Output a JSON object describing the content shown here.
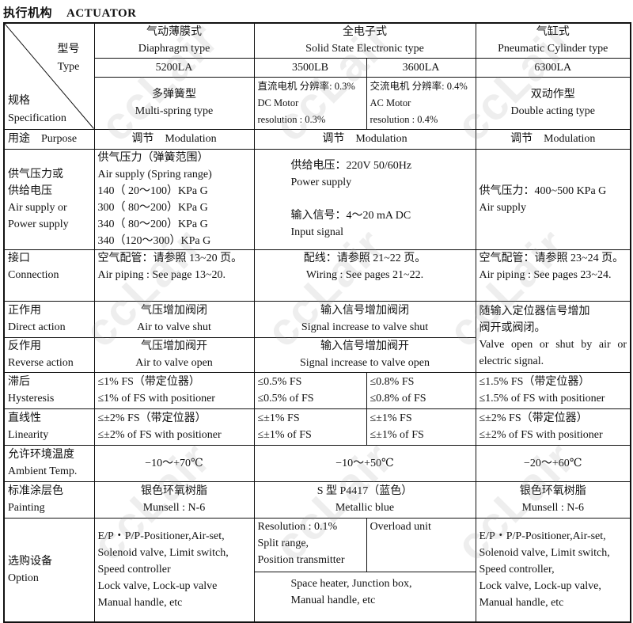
{
  "title": {
    "zh": "执行机构",
    "en": "ACTUATOR"
  },
  "watermark": "ccLair",
  "header": {
    "corner_type": "型号\nType",
    "corner_spec": "规格\nSpecification",
    "groups": [
      "气动薄膜式\nDiaphragm type",
      "全电子式\nSolid State Electronic type",
      "气缸式\nPneumatic Cylinder type"
    ],
    "models": [
      "5200LA",
      "3500LB",
      "3600LA",
      "6300LA"
    ],
    "specs": [
      "多弹簧型\nMulti-spring type",
      "直流电机 分辨率: 0.3%\nDC Motor\nresolution : 0.3%",
      "交流电机 分辨率: 0.4%\nAC Motor\nresolution : 0.4%",
      "双动作型\nDouble acting type"
    ]
  },
  "rows": {
    "purpose": {
      "label": "用途　Purpose",
      "values": [
        "调节　Modulation",
        "调节　Modulation",
        "调节　Modulation"
      ]
    },
    "supply": {
      "label": "供气压力或\n供给电压\nAir supply or\nPower supply",
      "values": [
        "供气压力（弹簧范围）\nAir supply (Spring range)\n   140（  20～100）KPa G\n   300（  80～200）KPa G\n   340（  80～200）KPa G\n   340（120～300）KPa G",
        "供给电压：220V 50/60Hz\nPower supply\n\n输入信号：4～20 mA DC\nInput signal",
        "供气压力：400~500 KPa G\n Air supply"
      ]
    },
    "connection": {
      "label": "接口\nConnection",
      "values": [
        "空气配管：请参照 13~20 页。\nAir piping : See page 13~20.\n ",
        " 配线：请参照 21~22 页。\n Wiring : See pages 21~22.\n ",
        "空气配管：请参照 23~24 页。\nAir piping : See pages 23~24."
      ]
    },
    "direct": {
      "label": "正作用\nDirect action",
      "values": [
        "气压增加阀闭\nAir to valve shut",
        "输入信号增加阀闭\nSignal increase to valve shut",
        "随输入定位器信号增加\n阀开或阀闭。\nValve open or shut by air or electric signal."
      ]
    },
    "reverse": {
      "label": "反作用\nReverse action",
      "values": [
        "气压增加阀开\nAir to valve open",
        "输入信号增加阀开\nSignal increase to valve open"
      ]
    },
    "hysteresis": {
      "label": "滞后\nHysteresis",
      "values": [
        "≤1% FS（带定位器）\n≤1% of FS with positioner",
        "≤0.5% FS\n≤0.5% of FS",
        "≤0.8% FS\n≤0.8% of FS",
        "≤1.5% FS（带定位器）\n≤1.5% of FS with positioner"
      ]
    },
    "linearity": {
      "label": "直线性\nLinearity",
      "values": [
        "≤±2% FS（带定位器）\n≤±2% of FS with positioner",
        "≤±1% FS\n≤±1% of FS",
        "≤±1% FS\n≤±1% of FS",
        "≤±2% FS（带定位器）\n≤±2% of FS with positioner"
      ]
    },
    "ambient": {
      "label": "允许环境温度\nAmbient Temp.",
      "values": [
        "−10～+70℃",
        "−10～+50℃",
        "−20～+60℃"
      ]
    },
    "painting": {
      "label": "标准涂层色\nPainting",
      "values": [
        "银色环氧树脂\nMunsell : N-6",
        "S 型 P4417（蓝色）\nMetallic blue",
        "银色环氧树脂\nMunsell : N-6"
      ]
    },
    "option": {
      "label": "选购设备\nOption",
      "values": [
        "E/P・P/P-Positioner,Air-set,\nSolenoid valve, Limit switch,\nSpeed controller\nLock valve, Lock-up valve\nManual handle, etc",
        "Resolution : 0.1%\nSplit range,\nPosition transmitter",
        "Overload unit",
        "Space heater, Junction box,\nManual handle, etc",
        "E/P・P/P-Positioner,Air-set,\nSolenoid valve, Limit switch,\nSpeed controller,\nLock valve, Lock-up valve,\nManual handle, etc"
      ]
    }
  }
}
